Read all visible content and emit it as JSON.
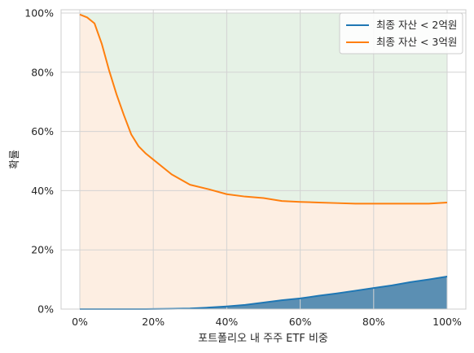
{
  "chart_data": {
    "type": "area",
    "xlabel": "포트폴리오 내 주주 ETF 비중",
    "ylabel": "확률",
    "xlim": [
      0,
      100
    ],
    "ylim": [
      0,
      100
    ],
    "x_ticks": [
      0,
      20,
      40,
      60,
      80,
      100
    ],
    "y_ticks": [
      0,
      20,
      40,
      60,
      80,
      100
    ],
    "x_tick_labels": [
      "0%",
      "20%",
      "40%",
      "60%",
      "80%",
      "100%"
    ],
    "y_tick_labels": [
      "0%",
      "20%",
      "40%",
      "60%",
      "80%",
      "100%"
    ],
    "grid": true,
    "legend_position": "top-right",
    "x": [
      0,
      2,
      4,
      6,
      8,
      10,
      12,
      14,
      16,
      18,
      20,
      25,
      30,
      35,
      40,
      45,
      50,
      55,
      60,
      65,
      70,
      75,
      80,
      85,
      90,
      95,
      100
    ],
    "series": [
      {
        "name": "최종 자산 < 2억원",
        "color": "#1f77b4",
        "fill": "#5b8fb3",
        "values": [
          0,
          0,
          0,
          0,
          0,
          0,
          0,
          0,
          0,
          0,
          0.05,
          0.1,
          0.2,
          0.5,
          0.9,
          1.4,
          2.2,
          3.0,
          3.6,
          4.5,
          5.3,
          6.2,
          7.1,
          8.0,
          9.1,
          10.0,
          11.0
        ]
      },
      {
        "name": "최종 자산 < 3억원",
        "color": "#ff7f0e",
        "fill": "#fdeee2",
        "values": [
          99.5,
          98.5,
          96.5,
          89.5,
          80.5,
          72.5,
          65.5,
          59.0,
          55.0,
          52.5,
          50.5,
          45.5,
          42.0,
          40.5,
          38.8,
          38.0,
          37.5,
          36.5,
          36.2,
          36.0,
          35.8,
          35.6,
          35.6,
          35.6,
          35.6,
          35.6,
          36.0
        ]
      }
    ],
    "upper_region_color": "#e6f2e6"
  }
}
